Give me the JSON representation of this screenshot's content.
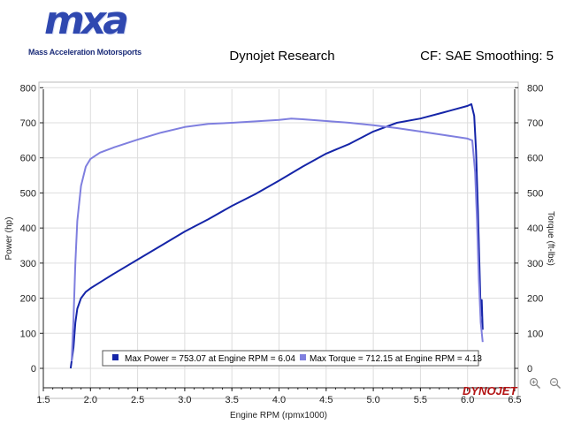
{
  "logo": {
    "word": "mxa",
    "tagline": "Mass Acceleration Motorsports"
  },
  "header": {
    "title": "Dynojet Research",
    "cf": "CF: SAE Smoothing: 5"
  },
  "brand_mark": "DYNOJET",
  "toolbar": {
    "zoom_in_icon": "zoom-in-icon",
    "zoom_out_icon": "zoom-out-icon"
  },
  "colors": {
    "power": "#1525a8",
    "torque": "#7f7fdf",
    "grid": "#dddddd",
    "plot_bg": "#ffffff"
  },
  "chart_data": {
    "type": "line",
    "xlabel": "Engine RPM (rpmx1000)",
    "ylabel": "Power (hp)",
    "y2label": "Torque (ft-lbs)",
    "xlim": [
      1.5,
      6.5
    ],
    "ylim": [
      0,
      800
    ],
    "y2lim": [
      0,
      800
    ],
    "x_ticks": [
      "1.5",
      "2.0",
      "2.5",
      "3.0",
      "3.5",
      "4.0",
      "4.5",
      "5.0",
      "5.5",
      "6.0",
      "6.5"
    ],
    "y_ticks": [
      "0",
      "100",
      "200",
      "300",
      "400",
      "500",
      "600",
      "700",
      "800"
    ],
    "y2_ticks": [
      "0",
      "100",
      "200",
      "300",
      "400",
      "500",
      "600",
      "700",
      "800"
    ],
    "grid": true,
    "legend": [
      {
        "label": "Max Power = 753.07 at Engine RPM = 6.04"
      },
      {
        "label": "Max Torque = 712.15 at Engine RPM = 4.13"
      }
    ],
    "series": [
      {
        "name": "Power",
        "axis": "left",
        "x": [
          1.79,
          1.82,
          1.84,
          1.86,
          1.9,
          1.95,
          2.0,
          2.1,
          2.25,
          2.5,
          2.75,
          3.0,
          3.25,
          3.5,
          3.75,
          4.0,
          4.25,
          4.5,
          4.75,
          5.0,
          5.25,
          5.5,
          5.75,
          6.0,
          6.04,
          6.07,
          6.09,
          6.11,
          6.13,
          6.14,
          6.15,
          6.16
        ],
        "y": [
          0,
          60,
          130,
          170,
          200,
          218,
          228,
          245,
          270,
          310,
          350,
          390,
          425,
          463,
          497,
          535,
          575,
          612,
          640,
          675,
          700,
          712,
          730,
          748,
          753,
          720,
          620,
          450,
          250,
          150,
          195,
          110
        ]
      },
      {
        "name": "Torque",
        "axis": "right",
        "x": [
          1.8,
          1.82,
          1.84,
          1.86,
          1.9,
          1.95,
          2.0,
          2.1,
          2.25,
          2.5,
          2.75,
          3.0,
          3.25,
          3.5,
          3.75,
          4.0,
          4.13,
          4.25,
          4.5,
          4.75,
          5.0,
          5.25,
          5.5,
          5.75,
          6.0,
          6.05,
          6.08,
          6.1,
          6.12,
          6.14,
          6.16
        ],
        "y": [
          20,
          140,
          300,
          420,
          520,
          575,
          597,
          615,
          630,
          652,
          672,
          688,
          697,
          700,
          704,
          708,
          712,
          710,
          705,
          700,
          693,
          685,
          675,
          665,
          655,
          650,
          560,
          420,
          250,
          130,
          75
        ]
      }
    ]
  }
}
